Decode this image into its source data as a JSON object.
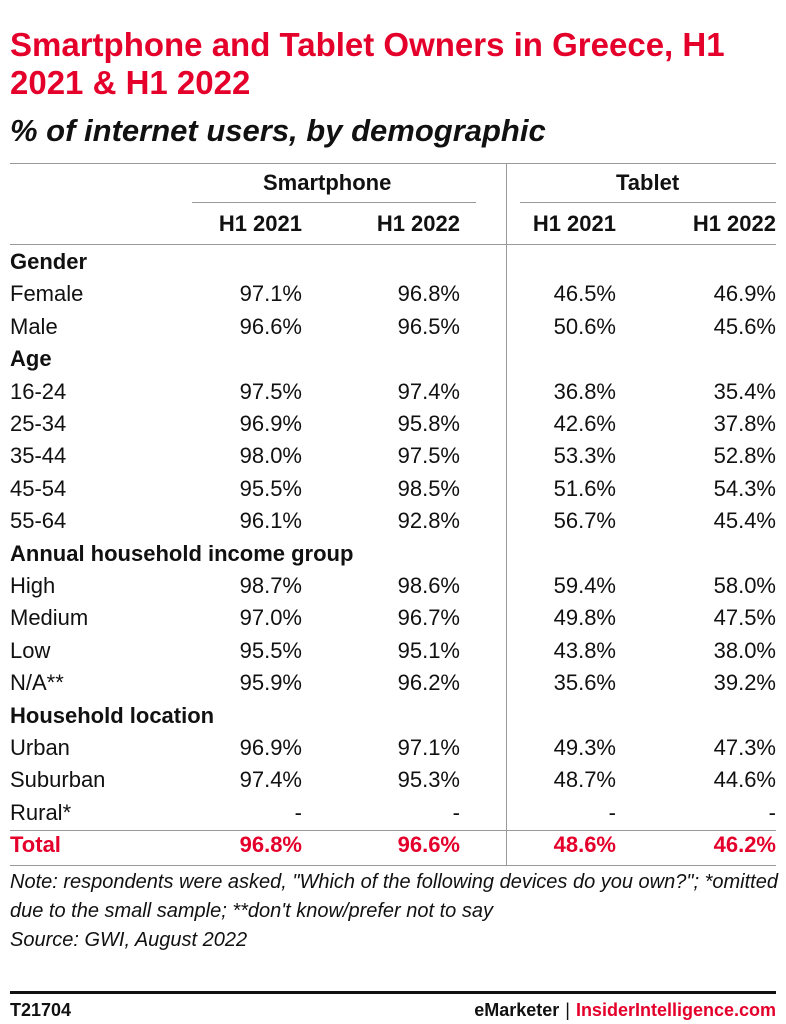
{
  "title": "Smartphone and Tablet Owners in Greece, H1 2021 & H1 2022",
  "subtitle": "% of internet users, by demographic",
  "chart_data": {
    "type": "table",
    "column_groups": [
      "Smartphone",
      "Tablet"
    ],
    "columns": [
      "H1 2021",
      "H1 2022",
      "H1 2021",
      "H1 2022"
    ],
    "rows": [
      {
        "kind": "section",
        "label": "Gender",
        "values": []
      },
      {
        "kind": "data",
        "label": "Female",
        "values": [
          "97.1%",
          "96.8%",
          "46.5%",
          "46.9%"
        ]
      },
      {
        "kind": "data",
        "label": "Male",
        "values": [
          "96.6%",
          "96.5%",
          "50.6%",
          "45.6%"
        ]
      },
      {
        "kind": "section",
        "label": "Age",
        "values": []
      },
      {
        "kind": "data",
        "label": "16-24",
        "values": [
          "97.5%",
          "97.4%",
          "36.8%",
          "35.4%"
        ]
      },
      {
        "kind": "data",
        "label": "25-34",
        "values": [
          "96.9%",
          "95.8%",
          "42.6%",
          "37.8%"
        ]
      },
      {
        "kind": "data",
        "label": "35-44",
        "values": [
          "98.0%",
          "97.5%",
          "53.3%",
          "52.8%"
        ]
      },
      {
        "kind": "data",
        "label": "45-54",
        "values": [
          "95.5%",
          "98.5%",
          "51.6%",
          "54.3%"
        ]
      },
      {
        "kind": "data",
        "label": "55-64",
        "values": [
          "96.1%",
          "92.8%",
          "56.7%",
          "45.4%"
        ]
      },
      {
        "kind": "section",
        "label": "Annual household income group",
        "values": []
      },
      {
        "kind": "data",
        "label": "High",
        "values": [
          "98.7%",
          "98.6%",
          "59.4%",
          "58.0%"
        ]
      },
      {
        "kind": "data",
        "label": "Medium",
        "values": [
          "97.0%",
          "96.7%",
          "49.8%",
          "47.5%"
        ]
      },
      {
        "kind": "data",
        "label": "Low",
        "values": [
          "95.5%",
          "95.1%",
          "43.8%",
          "38.0%"
        ]
      },
      {
        "kind": "data",
        "label": "N/A**",
        "values": [
          "95.9%",
          "96.2%",
          "35.6%",
          "39.2%"
        ]
      },
      {
        "kind": "section",
        "label": "Household location",
        "values": []
      },
      {
        "kind": "data",
        "label": "Urban",
        "values": [
          "96.9%",
          "97.1%",
          "49.3%",
          "47.3%"
        ]
      },
      {
        "kind": "data",
        "label": "Suburban",
        "values": [
          "97.4%",
          "95.3%",
          "48.7%",
          "44.6%"
        ]
      },
      {
        "kind": "data",
        "label": "Rural*",
        "values": [
          "-",
          "-",
          "-",
          "-"
        ]
      },
      {
        "kind": "total",
        "label": "Total",
        "values": [
          "96.8%",
          "96.6%",
          "48.6%",
          "46.2%"
        ]
      }
    ]
  },
  "notes": {
    "note": "Note: respondents were asked, \"Which of the following devices do you own?\"; *omitted due to the small sample; **don't know/prefer not to say",
    "source": "Source: GWI, August 2022"
  },
  "footer": {
    "id": "T21704",
    "brand": "eMarketer",
    "separator": "|",
    "brand2": "InsiderIntelligence.com"
  },
  "colors": {
    "accent": "#e4002b",
    "text": "#111111",
    "rule": "#999999"
  }
}
